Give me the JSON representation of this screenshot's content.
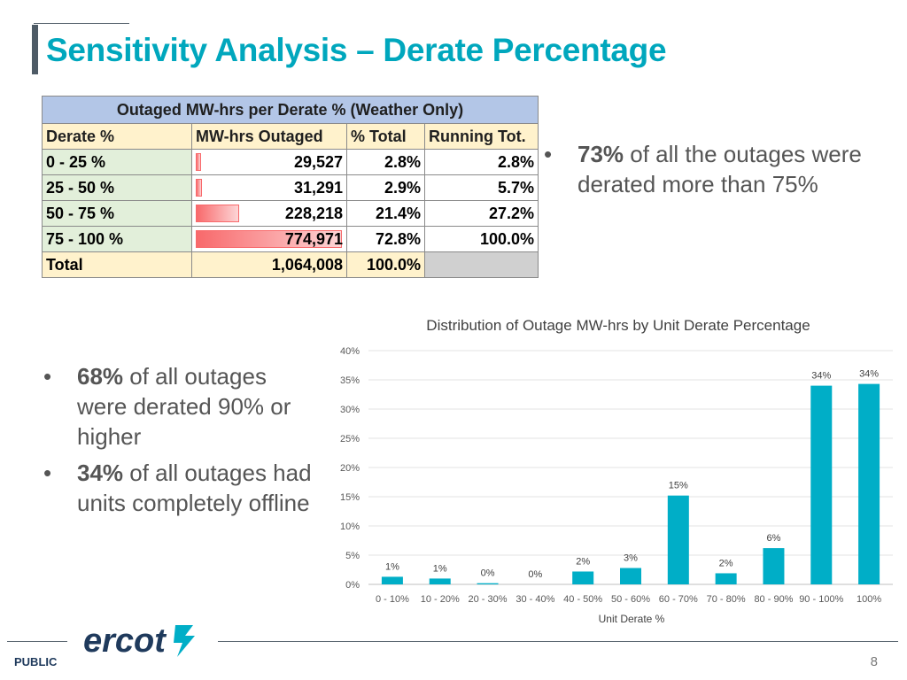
{
  "slide": {
    "title": "Sensitivity Analysis – Derate Percentage",
    "page_number": "8",
    "footer_label": "PUBLIC",
    "logo_text": "ercot"
  },
  "colors": {
    "title": "#00a7bd",
    "bar": "#00aec7",
    "table_caption_bg": "#b3c6e7",
    "table_header_bg": "#fff2cc",
    "table_category_bg": "#e2efda",
    "databar": "#f8696b"
  },
  "table": {
    "caption": "Outaged MW-hrs per Derate % (Weather Only)",
    "headers": [
      "Derate %",
      "MW-hrs Outaged",
      "% Total",
      "Running Tot."
    ],
    "rows": [
      {
        "derate": "0 - 25 %",
        "mw_hrs": "29,527",
        "pct_total": "2.8%",
        "running": "2.8%",
        "bar_fraction": 0.038
      },
      {
        "derate": "25 - 50 %",
        "mw_hrs": "31,291",
        "pct_total": "2.9%",
        "running": "5.7%",
        "bar_fraction": 0.04
      },
      {
        "derate": "50 - 75 %",
        "mw_hrs": "228,218",
        "pct_total": "21.4%",
        "running": "27.2%",
        "bar_fraction": 0.294
      },
      {
        "derate": "75 - 100 %",
        "mw_hrs": "774,971",
        "pct_total": "72.8%",
        "running": "100.0%",
        "bar_fraction": 1.0
      }
    ],
    "total": {
      "label": "Total",
      "mw_hrs": "1,064,008",
      "pct_total": "100.0%"
    }
  },
  "bullets_right": [
    {
      "bold": "73%",
      "text": " of all the outages were derated more than 75%"
    }
  ],
  "bullets_left": [
    {
      "bold": "68%",
      "text": " of all outages were derated 90% or higher"
    },
    {
      "bold": "34%",
      "text": " of all outages had units completely offline"
    }
  ],
  "chart_data": {
    "type": "bar",
    "title": "Distribution of Outage MW-hrs by Unit Derate Percentage",
    "xlabel": "Unit Derate %",
    "ylabel": "",
    "categories": [
      "0 - 10%",
      "10 - 20%",
      "20 - 30%",
      "30 - 40%",
      "40 - 50%",
      "50 - 60%",
      "60 - 70%",
      "70 - 80%",
      "80 - 90%",
      "90 - 100%",
      "100%"
    ],
    "values": [
      1.3,
      1.0,
      0.2,
      0.0,
      2.2,
      2.8,
      15.2,
      1.9,
      6.2,
      34.0,
      34.3
    ],
    "data_labels": [
      "1%",
      "1%",
      "0%",
      "0%",
      "2%",
      "3%",
      "15%",
      "2%",
      "6%",
      "34%",
      "34%"
    ],
    "ylim": [
      0,
      40
    ],
    "yticks": [
      0,
      5,
      10,
      15,
      20,
      25,
      30,
      35,
      40
    ],
    "ytick_labels": [
      "0%",
      "5%",
      "10%",
      "15%",
      "20%",
      "25%",
      "30%",
      "35%",
      "40%"
    ],
    "grid": true,
    "legend": "none"
  }
}
